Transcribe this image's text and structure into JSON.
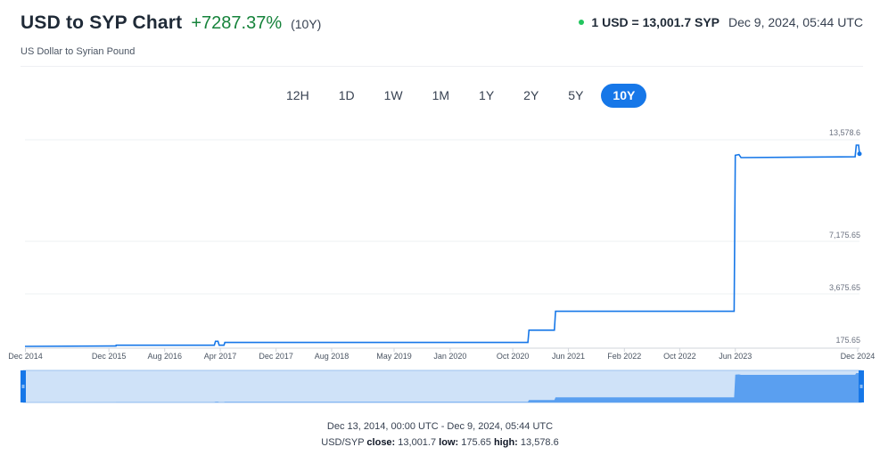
{
  "header": {
    "title": "USD to SYP Chart",
    "change": "+7287.37%",
    "period": "(10Y)",
    "subtitle": "US Dollar to Syrian Pound",
    "rate": "1 USD = 13,001.7 SYP",
    "timestamp": "Dec 9, 2024, 05:44 UTC"
  },
  "periods": [
    {
      "label": "12H",
      "active": false
    },
    {
      "label": "1D",
      "active": false
    },
    {
      "label": "1W",
      "active": false
    },
    {
      "label": "1M",
      "active": false
    },
    {
      "label": "1Y",
      "active": false
    },
    {
      "label": "2Y",
      "active": false
    },
    {
      "label": "5Y",
      "active": false
    },
    {
      "label": "10Y",
      "active": true
    }
  ],
  "colors": {
    "line": "#1677e8",
    "up": "#16833b",
    "live_dot": "#22c55e",
    "navigator_fill": "#cfe2f8",
    "navigator_area": "#5a9ff0"
  },
  "chart_data": {
    "type": "line",
    "x_ticks": [
      "Dec 2014",
      "Dec 2015",
      "Aug 2016",
      "Apr 2017",
      "Dec 2017",
      "Aug 2018",
      "May 2019",
      "Jan 2020",
      "Oct 2020",
      "Jun 2021",
      "Feb 2022",
      "Oct 2022",
      "Jun 2023",
      "Dec 2024"
    ],
    "y_ticks": [
      "175.65",
      "3,675.65",
      "7,175.65",
      "13,578.6"
    ],
    "ylim": [
      175.65,
      13578.6
    ],
    "grid": true,
    "series": [
      {
        "points": [
          [
            "2014-12-13",
            175.65
          ],
          [
            "2016-01-15",
            200
          ],
          [
            "2016-01-16",
            250
          ],
          [
            "2017-03-20",
            250
          ],
          [
            "2017-03-25",
            515
          ],
          [
            "2017-04-05",
            515
          ],
          [
            "2017-04-10",
            250
          ],
          [
            "2017-05-01",
            250
          ],
          [
            "2017-05-05",
            434
          ],
          [
            "2020-12-20",
            434
          ],
          [
            "2020-12-25",
            1256
          ],
          [
            "2021-04-15",
            1256
          ],
          [
            "2021-04-20",
            2512
          ],
          [
            "2023-06-10",
            2512
          ],
          [
            "2023-06-15",
            12900
          ],
          [
            "2023-07-01",
            12950
          ],
          [
            "2023-07-10",
            12750
          ],
          [
            "2024-11-20",
            12800
          ],
          [
            "2024-11-25",
            13578.6
          ],
          [
            "2024-12-05",
            13578.6
          ],
          [
            "2024-12-09",
            13001.7
          ]
        ]
      }
    ]
  },
  "footer": {
    "range": "Dec 13, 2014, 00:00 UTC - Dec 9, 2024, 05:44 UTC",
    "pair": "USD/SYP",
    "close_label": "close:",
    "close": "13,001.7",
    "low_label": "low:",
    "low": "175.65",
    "high_label": "high:",
    "high": "13,578.6"
  }
}
